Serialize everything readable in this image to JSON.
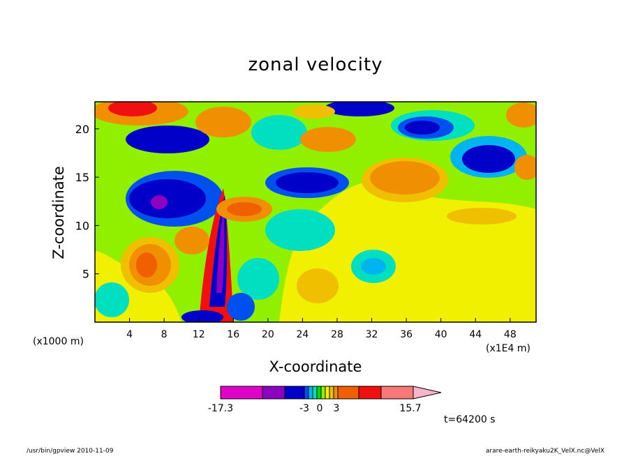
{
  "chart_data": {
    "type": "heatmap",
    "title": "zonal velocity",
    "xlabel": "X-coordinate",
    "ylabel": "Z-coordinate",
    "x_unit_note": "(x1000 m)",
    "x_unit_note_right": "(x1E4 m)",
    "x_ticks": [
      4,
      8,
      12,
      16,
      20,
      24,
      28,
      32,
      36,
      40,
      44,
      48
    ],
    "y_ticks": [
      5,
      10,
      15,
      20
    ],
    "xlim": [
      0,
      51
    ],
    "ylim": [
      0,
      22.8
    ],
    "colorbar": {
      "labels": [
        "-17.3",
        "-3",
        "0",
        "3",
        "15.7"
      ],
      "colors": [
        "#e000c8",
        "#8c00c0",
        "#0000c8",
        "#0050f0",
        "#00b4f0",
        "#00e0c0",
        "#00e000",
        "#90f000",
        "#f0f000",
        "#f0c000",
        "#f09000",
        "#f06000",
        "#f01010",
        "#f87878",
        "#f8b4c8"
      ]
    },
    "time_label": "t=64200 s"
  },
  "footer": {
    "left": "/usr/bin/gpview   2010-11-09",
    "right": "arare-earth-reikyaku2K_VelX.nc@VelX"
  }
}
